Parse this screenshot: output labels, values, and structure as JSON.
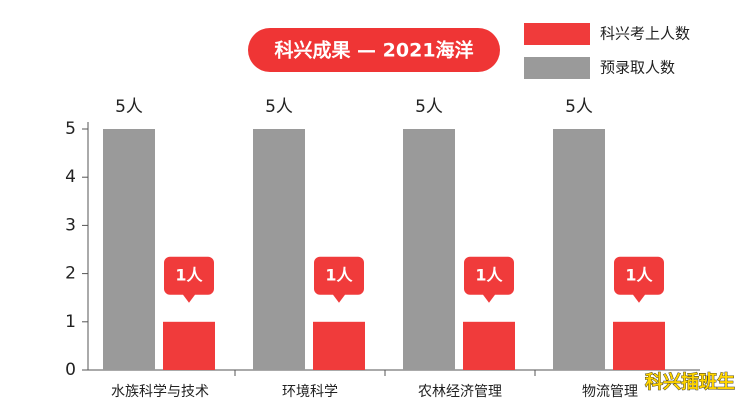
{
  "chart_data": {
    "type": "bar",
    "title": "科兴成果 — 2021海洋",
    "categories": [
      "水族科学与技术",
      "环境科学",
      "农林经济管理",
      "物流管理"
    ],
    "series": [
      {
        "name": "科兴考上人数",
        "color": "#f03b3b",
        "values": [
          1,
          1,
          1,
          1
        ],
        "value_labels": [
          "1人",
          "1人",
          "1人",
          "1人"
        ]
      },
      {
        "name": "预录取人数",
        "color": "#9a9a9a",
        "values": [
          5,
          5,
          5,
          5
        ],
        "value_labels": [
          "5人",
          "5人",
          "5人",
          "5人"
        ]
      }
    ],
    "ylim": [
      0,
      5
    ],
    "yticks": [
      0,
      1,
      2,
      3,
      4,
      5
    ],
    "watermark": "科兴插班生"
  }
}
